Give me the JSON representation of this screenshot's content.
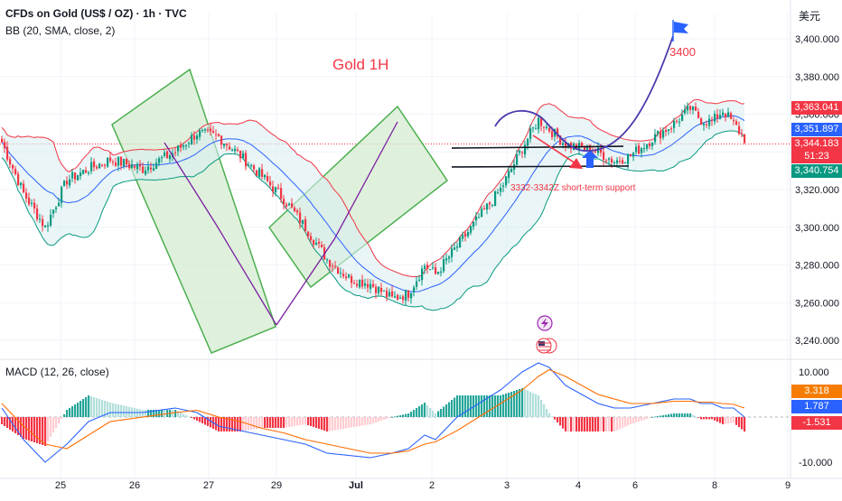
{
  "header": {
    "title": "CFDs on Gold (US$ / OZ) · 1h · TVC",
    "bb_label": "BB (20, SMA, close, 2)",
    "currency": "美元",
    "macd_label": "MACD (12, 26, close)"
  },
  "annotations": {
    "chart_label": "Gold 1H",
    "target_label": "3400",
    "support_label": "3332-3342Z short-term support"
  },
  "price_tags": [
    {
      "value": "3,363.041",
      "color": "#f23645"
    },
    {
      "value": "3,351.897",
      "color": "#2962ff"
    },
    {
      "value": "3,344.183",
      "color": "#f23645"
    },
    {
      "value": "51:23",
      "color": "#f23645"
    },
    {
      "value": "3,340.754",
      "color": "#089981"
    }
  ],
  "macd_tags": [
    {
      "value": "3.318",
      "color": "#f57c00"
    },
    {
      "value": "1.787",
      "color": "#2962ff"
    },
    {
      "value": "-1.531",
      "color": "#f23645"
    }
  ],
  "chart_data": [
    {
      "type": "candlestick",
      "title": "CFDs on Gold (US$ / OZ) · 1h · TVC",
      "ylim": [
        3230,
        3415
      ],
      "y_ticks": [
        "3,400.000",
        "3,380.000",
        "3,360.000",
        "3,340.000",
        "3,320.000",
        "3,300.000",
        "3,280.000",
        "3,260.000",
        "3,240.000"
      ],
      "y_tick_values": [
        3400,
        3380,
        3360,
        3340,
        3320,
        3300,
        3280,
        3260,
        3240
      ],
      "x_ticks": [
        "25",
        "26",
        "27",
        "29",
        "Jul",
        "2",
        "3",
        "4",
        "6",
        "8",
        "9"
      ],
      "close_anchors": [
        [
          0,
          3345
        ],
        [
          8,
          3318
        ],
        [
          16,
          3300
        ],
        [
          24,
          3325
        ],
        [
          32,
          3331
        ],
        [
          40,
          3336
        ],
        [
          52,
          3331
        ],
        [
          64,
          3340
        ],
        [
          72,
          3350
        ],
        [
          80,
          3348
        ],
        [
          88,
          3338
        ],
        [
          96,
          3327
        ],
        [
          104,
          3315
        ],
        [
          112,
          3300
        ],
        [
          120,
          3283
        ],
        [
          128,
          3273
        ],
        [
          136,
          3270
        ],
        [
          144,
          3262
        ],
        [
          150,
          3265
        ],
        [
          156,
          3280
        ],
        [
          160,
          3275
        ],
        [
          168,
          3290
        ],
        [
          176,
          3305
        ],
        [
          184,
          3320
        ],
        [
          192,
          3342
        ],
        [
          198,
          3357
        ],
        [
          202,
          3352
        ],
        [
          208,
          3344
        ],
        [
          214,
          3342
        ],
        [
          220,
          3340
        ],
        [
          226,
          3335
        ],
        [
          232,
          3338
        ],
        [
          240,
          3347
        ],
        [
          248,
          3355
        ],
        [
          254,
          3363
        ],
        [
          258,
          3357
        ],
        [
          262,
          3356
        ],
        [
          266,
          3362
        ],
        [
          270,
          3355
        ],
        [
          274,
          3347
        ]
      ],
      "projection": {
        "path": [
          [
            274,
            3347
          ],
          [
            280,
            3340
          ],
          [
            286,
            3342
          ],
          [
            292,
            3355
          ],
          [
            298,
            3375
          ],
          [
            304,
            3400
          ]
        ],
        "target": 3400,
        "support_levels": [
          3342,
          3332
        ]
      }
    },
    {
      "type": "macd",
      "ylim": [
        -14,
        14
      ],
      "y_ticks": [
        "10.000",
        "-10.000"
      ],
      "y_tick_values": [
        10,
        -10
      ],
      "macd_anchors": [
        [
          0,
          2
        ],
        [
          8,
          -5
        ],
        [
          16,
          -10
        ],
        [
          24,
          -6
        ],
        [
          32,
          -1
        ],
        [
          40,
          1
        ],
        [
          52,
          1
        ],
        [
          64,
          2
        ],
        [
          72,
          1
        ],
        [
          80,
          -2
        ],
        [
          88,
          -3
        ],
        [
          96,
          -4
        ],
        [
          104,
          -5
        ],
        [
          112,
          -6
        ],
        [
          120,
          -8
        ],
        [
          128,
          -8.5
        ],
        [
          136,
          -9
        ],
        [
          144,
          -8
        ],
        [
          150,
          -7
        ],
        [
          156,
          -4
        ],
        [
          160,
          -5
        ],
        [
          168,
          0
        ],
        [
          176,
          3
        ],
        [
          184,
          6
        ],
        [
          192,
          10
        ],
        [
          198,
          12
        ],
        [
          202,
          11
        ],
        [
          208,
          7
        ],
        [
          214,
          5
        ],
        [
          220,
          3
        ],
        [
          226,
          2
        ],
        [
          232,
          2
        ],
        [
          240,
          3
        ],
        [
          248,
          4
        ],
        [
          254,
          4
        ],
        [
          258,
          3
        ],
        [
          262,
          3
        ],
        [
          266,
          2
        ],
        [
          270,
          2
        ],
        [
          274,
          0
        ]
      ],
      "signal_anchors": [
        [
          0,
          3
        ],
        [
          8,
          -2
        ],
        [
          16,
          -6
        ],
        [
          24,
          -7
        ],
        [
          32,
          -4
        ],
        [
          40,
          -1
        ],
        [
          52,
          0
        ],
        [
          64,
          1
        ],
        [
          72,
          1.5
        ],
        [
          80,
          0
        ],
        [
          88,
          -1
        ],
        [
          96,
          -2.5
        ],
        [
          104,
          -3.5
        ],
        [
          112,
          -5
        ],
        [
          120,
          -6
        ],
        [
          128,
          -7
        ],
        [
          136,
          -8
        ],
        [
          144,
          -8
        ],
        [
          150,
          -7.5
        ],
        [
          156,
          -6
        ],
        [
          160,
          -5.5
        ],
        [
          168,
          -3
        ],
        [
          176,
          0
        ],
        [
          184,
          3
        ],
        [
          192,
          6
        ],
        [
          198,
          9
        ],
        [
          202,
          10.5
        ],
        [
          208,
          9
        ],
        [
          214,
          7
        ],
        [
          220,
          5
        ],
        [
          226,
          4
        ],
        [
          232,
          3
        ],
        [
          240,
          3
        ],
        [
          248,
          3.5
        ],
        [
          254,
          3.5
        ],
        [
          258,
          3.3
        ],
        [
          262,
          3.3
        ],
        [
          266,
          3
        ],
        [
          270,
          2.8
        ],
        [
          274,
          2
        ]
      ]
    }
  ],
  "colors": {
    "up": "#089981",
    "down": "#f23645",
    "bb_upper": "#f23645",
    "bb_basis": "#2962ff",
    "bb_lower": "#089981",
    "bb_fill": "#dbeef0",
    "channel_fill": "#d4ecd0",
    "channel_stroke": "#4caf50",
    "trend": "#7b1fa2",
    "projection": "#4a3aad",
    "macd": "#2962ff",
    "signal": "#ff6d00",
    "flag": "#2962ff"
  }
}
